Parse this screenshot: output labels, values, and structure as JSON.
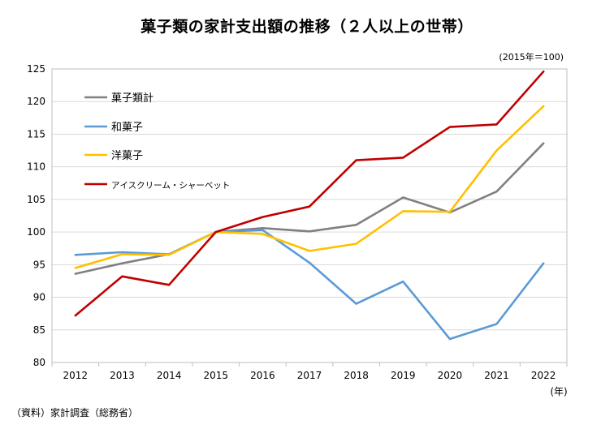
{
  "header": {
    "title": "菓子類の家計支出額の推移（２人以上の世帯）",
    "note": "(2015年＝100)",
    "source": "（資料）家計調査（総務省）"
  },
  "chart_data": {
    "type": "line",
    "title": "菓子類の家計支出額の推移（２人以上の世帯）",
    "xlabel": "(年)",
    "ylabel": "",
    "x": [
      "2012",
      "2013",
      "2014",
      "2015",
      "2016",
      "2017",
      "2018",
      "2019",
      "2020",
      "2021",
      "2022"
    ],
    "ylim": [
      80,
      125
    ],
    "yticks": [
      80,
      85,
      90,
      95,
      100,
      105,
      110,
      115,
      120,
      125
    ],
    "grid": true,
    "legend_position": "top-left",
    "series": [
      {
        "name": "菓子類計",
        "color": "#808080",
        "values": [
          93.6,
          95.2,
          96.6,
          100.0,
          100.6,
          100.1,
          101.1,
          105.3,
          103.0,
          106.2,
          113.6
        ]
      },
      {
        "name": "和菓子",
        "color": "#5b9bd5",
        "values": [
          96.5,
          96.9,
          96.6,
          100.0,
          100.3,
          95.3,
          89.0,
          92.4,
          83.6,
          85.9,
          95.2
        ]
      },
      {
        "name": "洋菓子",
        "color": "#ffc000",
        "values": [
          94.5,
          96.6,
          96.5,
          100.0,
          99.7,
          97.1,
          98.2,
          103.2,
          103.1,
          112.5,
          119.3
        ]
      },
      {
        "name": "アイスクリーム・シャーベット",
        "color": "#c00000",
        "values": [
          87.2,
          93.2,
          91.9,
          100.0,
          102.3,
          103.9,
          111.0,
          111.4,
          116.1,
          116.5,
          124.6
        ]
      }
    ]
  }
}
